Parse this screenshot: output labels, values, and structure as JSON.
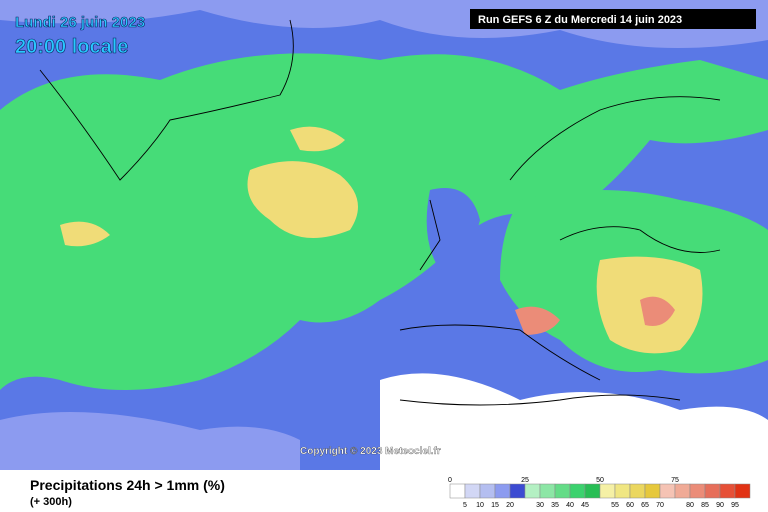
{
  "header": {
    "date": "Lundi 26 juin 2023",
    "time": "20:00 locale",
    "run": "Run GEFS 6 Z du Mercredi 14 juin 2023"
  },
  "copyright": "Copyright © 2023 Meteociel.fr",
  "legend": {
    "title": "Precipitations 24h > 1mm (%)",
    "subtitle": "(+ 300h)",
    "range": [
      0,
      100
    ],
    "major_ticks": [
      0,
      25,
      50,
      75
    ],
    "minor_ticks": [
      5,
      10,
      15,
      20,
      30,
      35,
      40,
      45,
      55,
      60,
      65,
      70,
      80,
      85,
      90,
      95
    ],
    "colors": [
      "#ffffff",
      "#d2d7f5",
      "#b4bef0",
      "#8c9bf0",
      "#3c4bd2",
      "#b4f0c3",
      "#8ce6a5",
      "#64dc87",
      "#3cd26e",
      "#28be55",
      "#f5f0a5",
      "#f0e682",
      "#ebd75f",
      "#e6c83c",
      "#f5c3b4",
      "#f0aa96",
      "#eb8c78",
      "#e66e5a",
      "#e65037",
      "#e13214"
    ]
  }
}
